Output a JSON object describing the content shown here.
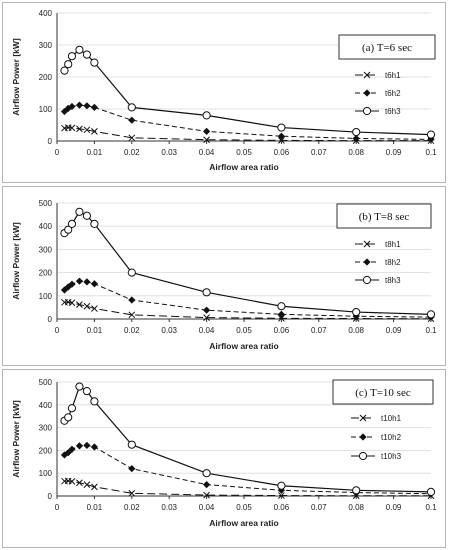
{
  "chart_data": [
    {
      "type": "line",
      "title": "(a) T=6 sec",
      "xlabel": "Airflow area ratio",
      "ylabel": "Airflow Power [kW]",
      "xlim": [
        0,
        0.1
      ],
      "ylim": [
        0,
        400
      ],
      "xticks": [
        "0",
        "0.01",
        "0.02",
        "0.03",
        "0.04",
        "0.05",
        "0.06",
        "0.07",
        "0.08",
        "0.09",
        "0.1"
      ],
      "yticks": [
        "0",
        "100",
        "200",
        "300",
        "400"
      ],
      "legend_position": "right",
      "x": [
        0.002,
        0.003,
        0.004,
        0.006,
        0.008,
        0.01,
        0.02,
        0.04,
        0.06,
        0.08,
        0.1
      ],
      "series": [
        {
          "name": "t6h1",
          "marker": "x",
          "dash": "long-dash",
          "values": [
            40,
            42,
            41,
            38,
            35,
            30,
            10,
            4,
            2,
            1,
            1
          ]
        },
        {
          "name": "t6h2",
          "marker": "diamond",
          "dash": "dash",
          "values": [
            92,
            102,
            108,
            112,
            110,
            105,
            65,
            30,
            15,
            8,
            5
          ]
        },
        {
          "name": "t6h3",
          "marker": "circle",
          "dash": "solid",
          "values": [
            220,
            240,
            265,
            285,
            270,
            245,
            105,
            80,
            42,
            28,
            20
          ]
        }
      ]
    },
    {
      "type": "line",
      "title": "(b) T=8 sec",
      "xlabel": "Airflow area ratio",
      "ylabel": "Airflow Power [kW]",
      "xlim": [
        0,
        0.1
      ],
      "ylim": [
        0,
        500
      ],
      "xticks": [
        "0",
        "0.01",
        "0.02",
        "0.03",
        "0.04",
        "0.05",
        "0.06",
        "0.07",
        "0.08",
        "0.09",
        "0.1"
      ],
      "yticks": [
        "0",
        "100",
        "200",
        "300",
        "400",
        "500"
      ],
      "legend_position": "right",
      "x": [
        0.002,
        0.003,
        0.004,
        0.006,
        0.008,
        0.01,
        0.02,
        0.04,
        0.06,
        0.08,
        0.1
      ],
      "series": [
        {
          "name": "t8h1",
          "marker": "x",
          "dash": "long-dash",
          "values": [
            72,
            73,
            70,
            62,
            55,
            45,
            18,
            6,
            3,
            2,
            1
          ]
        },
        {
          "name": "t8h2",
          "marker": "diamond",
          "dash": "dash",
          "values": [
            125,
            138,
            150,
            163,
            160,
            152,
            82,
            38,
            20,
            12,
            8
          ]
        },
        {
          "name": "t8h3",
          "marker": "circle",
          "dash": "solid",
          "values": [
            370,
            385,
            410,
            462,
            445,
            410,
            200,
            115,
            55,
            30,
            20
          ]
        }
      ]
    },
    {
      "type": "line",
      "title": "(c) T=10 sec",
      "xlabel": "Airflow area ratio",
      "ylabel": "Airflow Power [kW]",
      "xlim": [
        0,
        0.1
      ],
      "ylim": [
        0,
        500
      ],
      "xticks": [
        "0",
        "0.01",
        "0.02",
        "0.03",
        "0.04",
        "0.05",
        "0.06",
        "0.07",
        "0.08",
        "0.09",
        "0.1"
      ],
      "yticks": [
        "0",
        "100",
        "200",
        "300",
        "400",
        "500"
      ],
      "legend_position": "right",
      "x": [
        0.002,
        0.003,
        0.004,
        0.006,
        0.008,
        0.01,
        0.02,
        0.04,
        0.06,
        0.08,
        0.1
      ],
      "series": [
        {
          "name": "t10h1",
          "marker": "x",
          "dash": "long-dash",
          "values": [
            65,
            66,
            64,
            58,
            50,
            40,
            12,
            4,
            2,
            1,
            1
          ]
        },
        {
          "name": "t10h2",
          "marker": "diamond",
          "dash": "dash",
          "values": [
            180,
            190,
            205,
            220,
            222,
            215,
            120,
            50,
            25,
            15,
            10
          ]
        },
        {
          "name": "t10h3",
          "marker": "circle",
          "dash": "solid",
          "values": [
            330,
            345,
            385,
            480,
            460,
            415,
            225,
            100,
            45,
            25,
            18
          ]
        }
      ]
    }
  ]
}
